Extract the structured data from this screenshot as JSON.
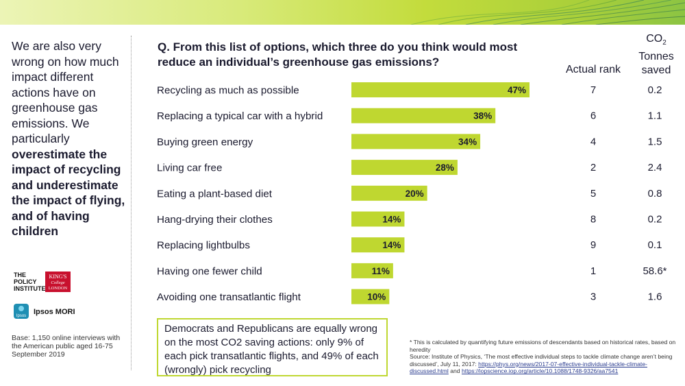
{
  "sidebar": {
    "intro": "We are also very wrong on how much impact different actions have on greenhouse gas emissions. We particularly",
    "emphasis": "overestimate the impact of recycling and underestimate the impact of flying, and of having children"
  },
  "logos": {
    "policy_institute": [
      "THE",
      "POLICY",
      "INSTITUTE"
    ],
    "kings_college": [
      "KING'S",
      "College",
      "LONDON"
    ],
    "ipsos_badge": "Ipsos",
    "ipsos_mori": "Ipsos MORI"
  },
  "base_note": "Base: 1,150 online interviews with the American public aged 16-75 September 2019",
  "question": "Q. From this list of options, which three do you think would most reduce an individual’s greenhouse gas emissions?",
  "columns": {
    "actual_rank": "Actual rank",
    "co2_line1": "CO",
    "co2_sub": "2",
    "co2_line2": "Tonnes",
    "co2_line3": "saved"
  },
  "chart_data": {
    "type": "bar",
    "orientation": "horizontal",
    "categories": [
      "Recycling as much  as possible",
      "Replacing a typical car with a hybrid",
      "Buying green energy",
      "Living car free",
      "Eating a plant-based diet",
      "Hang-drying  their clothes",
      "Replacing lightbulbs",
      "Having one fewer child",
      "Avoiding one transatlantic flight"
    ],
    "values": [
      47,
      38,
      34,
      28,
      20,
      14,
      14,
      11,
      10
    ],
    "value_labels": [
      "47%",
      "38%",
      "34%",
      "28%",
      "20%",
      "14%",
      "14%",
      "11%",
      "10%"
    ],
    "actual_rank": [
      "7",
      "6",
      "4",
      "2",
      "5",
      "8",
      "9",
      "1",
      "3"
    ],
    "co2_tonnes_saved": [
      "0.2",
      "1.1",
      "1.5",
      "2.4",
      "0.8",
      "0.2",
      "0.1",
      "58.6*",
      "1.6"
    ],
    "xlim": [
      0,
      47
    ],
    "bar_color": "#bfd730"
  },
  "callout": "Democrats and Republicans are equally wrong on the most CO2 saving actions: only 9% of each pick transatlantic flights, and 49% of each (wrongly) pick recycling",
  "footnote": {
    "asterisk_note": "* This is calculated by quantifying future emissions of descendants based on historical rates, based on heredity",
    "source_prefix": "Source: Institute of Physics, ‘The most effective individual steps to tackle climate change aren’t being discussed’, July 11, 2017: ",
    "link1": "https://phys.org/news/2017-07-effective-individual-tackle-climate-discussed.html",
    "and": " and ",
    "link2": "https://iopscience.iop.org/article/10.1088/1748-9326/aa7541"
  },
  "colors": {
    "accent": "#bfd730",
    "text": "#1a1a2e",
    "band_dark": "#2e7d5b"
  }
}
